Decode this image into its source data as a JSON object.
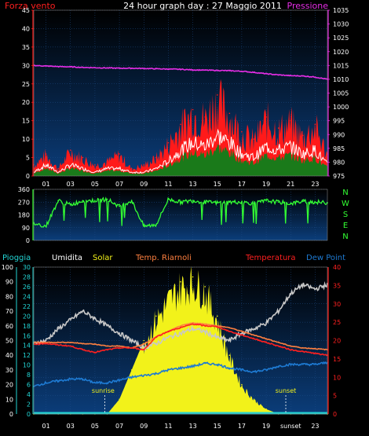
{
  "colors": {
    "bg": "#000000",
    "plot_bg_top": "#000000",
    "plot_bg_bottom": "#0b3d7a",
    "grid": "#1e4d8a",
    "wind_gust": "#ff1a1a",
    "wind_avg": "#ffffff",
    "wind_fill": "#1a7a1a",
    "pressure": "#e62ee6",
    "direction": "#33ff33",
    "humidity": "#c8c8c8",
    "solar": "#f2f21a",
    "temp_riarnoli": "#ff8040",
    "temperature": "#ff2020",
    "dew_point": "#1e7ad2",
    "rain": "#22d4d4",
    "axis_text": "#ffffff",
    "wind_axis": "#ff2020",
    "press_axis": "#e62ee6",
    "rain_axis": "#22d4d4",
    "temp_axis": "#ff2020",
    "dir_axis": "#33ff33"
  },
  "header": {
    "left_label": "Forza vento",
    "title": "24 hour graph day : 27 Maggio 2011",
    "right_label": "Pressione"
  },
  "x_ticks": [
    "01",
    "03",
    "05",
    "07",
    "09",
    "11",
    "13",
    "15",
    "17",
    "19",
    "21",
    "23"
  ],
  "x_ticks_bottom": [
    "01",
    "03",
    "05",
    "07",
    "09",
    "11",
    "13",
    "15",
    "17",
    "19",
    "sunset",
    "23"
  ],
  "chart_data": [
    {
      "type": "line",
      "name": "wind-pressure",
      "y_left": {
        "ticks": [
          "0",
          "5",
          "10",
          "15",
          "20",
          "25",
          "30",
          "35",
          "40",
          "45"
        ],
        "ylim": [
          0,
          45
        ]
      },
      "y_right": {
        "ticks": [
          "975",
          "980",
          "985",
          "990",
          "995",
          "1000",
          "1005",
          "1010",
          "1015",
          "1020",
          "1025",
          "1030",
          "1035"
        ],
        "ylim": [
          975,
          1035
        ]
      },
      "x": [
        0,
        1,
        2,
        3,
        4,
        5,
        6,
        7,
        8,
        9,
        10,
        11,
        12,
        13,
        14,
        15,
        16,
        17,
        18,
        19,
        20,
        21,
        22,
        23,
        24
      ],
      "series": [
        {
          "name": "Forza vento",
          "axis": "left",
          "values": [
            3,
            6,
            2,
            7,
            5,
            3,
            4,
            6,
            2,
            3,
            5,
            9,
            14,
            18,
            16,
            22,
            17,
            12,
            10,
            16,
            13,
            15,
            11,
            14,
            6
          ]
        },
        {
          "name": "avg",
          "axis": "left",
          "values": [
            1,
            3,
            1,
            3,
            2,
            1,
            2,
            2,
            1,
            1,
            2,
            4,
            7,
            9,
            8,
            11,
            9,
            6,
            5,
            8,
            7,
            8,
            6,
            7,
            3
          ]
        },
        {
          "name": "Pressione",
          "axis": "right",
          "values": [
            1015,
            1014.8,
            1014.6,
            1014.5,
            1014.3,
            1014.2,
            1014.1,
            1014.0,
            1014,
            1013.9,
            1013.8,
            1013.7,
            1013.6,
            1013.4,
            1013.3,
            1013.2,
            1013.1,
            1012.9,
            1012.5,
            1012.0,
            1011.6,
            1011.3,
            1011.2,
            1010.8,
            1010.0
          ]
        }
      ]
    },
    {
      "type": "line",
      "name": "wind-direction",
      "y_left": {
        "ticks": [
          "0",
          "90",
          "180",
          "270",
          "360"
        ],
        "ylim": [
          0,
          360
        ]
      },
      "y_right": {
        "ticks": [
          "N",
          "W",
          "S",
          "E",
          "N"
        ]
      },
      "x": [
        0,
        1,
        2,
        3,
        4,
        5,
        6,
        7,
        8,
        9,
        10,
        11,
        12,
        13,
        14,
        15,
        16,
        17,
        18,
        19,
        20,
        21,
        22,
        23,
        24
      ],
      "series": [
        {
          "name": "direction",
          "values": [
            120,
            100,
            280,
            250,
            280,
            280,
            290,
            240,
            280,
            100,
            110,
            290,
            270,
            280,
            270,
            265,
            270,
            270,
            260,
            280,
            270,
            260,
            275,
            270,
            265
          ]
        }
      ]
    },
    {
      "type": "line",
      "name": "temperature-humidity-solar",
      "legend": [
        "Pioggia",
        "Umidita",
        "Solar",
        "Temp. Riarnoli",
        "Temperatura",
        "Dew Point"
      ],
      "y_left_outer": {
        "ticks": [
          "0",
          "10",
          "20",
          "30",
          "40",
          "50",
          "60",
          "70",
          "80",
          "90",
          "100"
        ],
        "ylim": [
          0,
          100
        ]
      },
      "y_left_inner": {
        "ticks": [
          "0",
          "2",
          "4",
          "6",
          "8",
          "10",
          "12",
          "14",
          "16",
          "18",
          "20",
          "22",
          "24",
          "26",
          "28",
          "30"
        ],
        "ylim": [
          0,
          30
        ]
      },
      "y_right": {
        "ticks": [
          "0",
          "5",
          "10",
          "15",
          "20",
          "25",
          "30",
          "35",
          "40"
        ],
        "ylim": [
          0,
          40
        ]
      },
      "x": [
        0,
        1,
        2,
        3,
        4,
        5,
        6,
        7,
        8,
        9,
        10,
        11,
        12,
        13,
        14,
        15,
        16,
        17,
        18,
        19,
        20,
        21,
        22,
        23,
        24
      ],
      "annotations": [
        "sunrise",
        "sunset"
      ],
      "sunrise_hour": 5.8,
      "sunset_hour": 20.6,
      "series": [
        {
          "name": "Umidita",
          "axis": "outer",
          "values": [
            48,
            50,
            58,
            64,
            70,
            65,
            60,
            55,
            50,
            45,
            48,
            52,
            55,
            58,
            56,
            52,
            50,
            55,
            58,
            62,
            70,
            82,
            88,
            85,
            88
          ]
        },
        {
          "name": "Solar",
          "axis": "inner",
          "values": [
            0,
            0,
            0,
            0,
            0,
            0,
            0,
            3,
            9,
            15,
            20,
            24,
            27,
            28,
            26,
            20,
            12,
            6,
            3,
            1,
            0,
            0,
            0,
            0,
            0
          ]
        },
        {
          "name": "Temp. Riarnoli",
          "axis": "right",
          "values": [
            19.5,
            19.5,
            19.5,
            19.5,
            19.2,
            19,
            18.5,
            18.5,
            18,
            19,
            21,
            22.5,
            24,
            24.8,
            24.5,
            24,
            23.5,
            22.5,
            21.5,
            20.5,
            19.5,
            18.5,
            18,
            17.8,
            17.5
          ]
        },
        {
          "name": "Temperatura",
          "axis": "right",
          "values": [
            19,
            19.2,
            18.8,
            18.5,
            17.5,
            16.8,
            17.5,
            18,
            18,
            17.5,
            21,
            22.5,
            23.5,
            24.5,
            24,
            23.8,
            22.5,
            21.5,
            20.5,
            19.5,
            18.5,
            17.5,
            17,
            16.5,
            16
          ]
        },
        {
          "name": "Dew Point",
          "axis": "right",
          "values": [
            7.5,
            8.5,
            9,
            9.5,
            9.5,
            8.5,
            8.5,
            9.2,
            10,
            10.5,
            11,
            12,
            12.5,
            13,
            13.8,
            13.5,
            12.5,
            12,
            11.5,
            12,
            13,
            13.5,
            13.5,
            13.5,
            14
          ]
        },
        {
          "name": "Pioggia",
          "axis": "outer",
          "values": [
            0,
            0,
            0,
            0,
            0,
            0,
            0,
            0,
            0,
            0,
            0,
            0,
            0,
            0,
            0,
            0,
            0,
            0,
            0,
            0,
            0,
            0,
            0,
            0,
            0
          ]
        }
      ]
    }
  ]
}
